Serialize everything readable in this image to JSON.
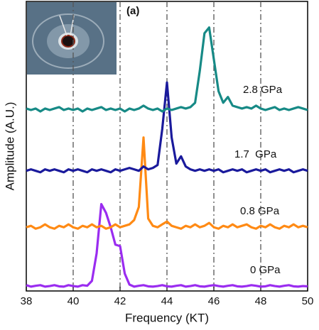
{
  "chart_data": {
    "type": "line",
    "panel_label": "(a)",
    "x_label": "Frequency (KT)",
    "y_label": "Amplitude (A.U.)",
    "xlim": [
      38,
      50
    ],
    "xticks": [
      38,
      40,
      42,
      44,
      46,
      48,
      50
    ],
    "ylim": [
      0,
      10
    ],
    "grid": true,
    "x": [
      38.0,
      38.2,
      38.4,
      38.6,
      38.8,
      39.0,
      39.2,
      39.4,
      39.6,
      39.8,
      40.0,
      40.2,
      40.4,
      40.6,
      40.8,
      41.0,
      41.2,
      41.4,
      41.6,
      41.8,
      42.0,
      42.2,
      42.4,
      42.6,
      42.8,
      43.0,
      43.2,
      43.4,
      43.6,
      43.8,
      44.0,
      44.2,
      44.4,
      44.6,
      44.8,
      45.0,
      45.2,
      45.4,
      45.6,
      45.8,
      46.0,
      46.2,
      46.4,
      46.6,
      46.8,
      47.0,
      47.2,
      47.4,
      47.6,
      47.8,
      48.0,
      48.2,
      48.4,
      48.6,
      48.8,
      49.0,
      49.2,
      49.4,
      49.6,
      49.8,
      50.0
    ],
    "series": [
      {
        "name": "0 GPa",
        "color": "#9a2cf0",
        "values": [
          0.2,
          0.15,
          0.18,
          0.2,
          0.15,
          0.17,
          0.2,
          0.16,
          0.15,
          0.2,
          0.17,
          0.15,
          0.2,
          0.18,
          0.35,
          1.3,
          3.0,
          2.7,
          2.2,
          1.6,
          1.55,
          0.6,
          0.22,
          0.15,
          0.18,
          0.2,
          0.16,
          0.15,
          0.17,
          0.2,
          0.16,
          0.15,
          0.18,
          0.2,
          0.15,
          0.17,
          0.2,
          0.16,
          0.15,
          0.18,
          0.2,
          0.17,
          0.15,
          0.18,
          0.2,
          0.16,
          0.15,
          0.17,
          0.2,
          0.18,
          0.15,
          0.16,
          0.2,
          0.17,
          0.15,
          0.18,
          0.2,
          0.16,
          0.15,
          0.17,
          0.16
        ]
      },
      {
        "name": "0.8 GPa",
        "color": "#ff8a14",
        "values": [
          2.2,
          2.25,
          2.15,
          2.2,
          2.3,
          2.2,
          2.15,
          2.25,
          2.2,
          2.3,
          2.2,
          2.15,
          2.25,
          2.2,
          2.3,
          2.2,
          2.25,
          2.15,
          2.2,
          2.3,
          2.2,
          2.25,
          2.3,
          2.45,
          2.9,
          5.3,
          2.5,
          2.25,
          2.2,
          2.3,
          2.4,
          2.25,
          2.2,
          2.15,
          2.25,
          2.2,
          2.3,
          2.2,
          2.25,
          2.35,
          2.2,
          2.15,
          2.25,
          2.2,
          2.3,
          2.2,
          2.25,
          2.3,
          2.2,
          2.15,
          2.25,
          2.2,
          2.3,
          2.2,
          2.15,
          2.25,
          2.2,
          2.3,
          2.2,
          2.25,
          2.2
        ]
      },
      {
        "name": "1.7  GPa",
        "color": "#1a1a9c",
        "values": [
          4.15,
          4.2,
          4.15,
          4.1,
          4.2,
          4.15,
          4.2,
          4.15,
          4.1,
          4.2,
          4.15,
          4.2,
          4.15,
          4.1,
          4.2,
          4.15,
          4.2,
          4.15,
          4.1,
          4.2,
          4.15,
          4.2,
          4.25,
          4.2,
          4.15,
          4.3,
          4.2,
          4.25,
          4.35,
          5.6,
          7.2,
          5.3,
          4.4,
          4.65,
          4.3,
          4.2,
          4.15,
          4.2,
          4.15,
          4.2,
          4.15,
          4.2,
          4.1,
          4.15,
          4.2,
          4.15,
          4.2,
          4.1,
          4.15,
          4.2,
          4.15,
          4.2,
          4.1,
          4.15,
          4.2,
          4.15,
          4.2,
          4.1,
          4.15,
          4.2,
          4.15
        ]
      },
      {
        "name": "2.8 GPa",
        "color": "#178a86",
        "values": [
          6.3,
          6.25,
          6.3,
          6.2,
          6.3,
          6.25,
          6.3,
          6.35,
          6.25,
          6.3,
          6.25,
          6.3,
          6.2,
          6.3,
          6.25,
          6.3,
          6.35,
          6.25,
          6.3,
          6.25,
          6.3,
          6.2,
          6.3,
          6.25,
          6.3,
          6.4,
          6.3,
          6.25,
          6.3,
          6.2,
          6.3,
          6.25,
          6.3,
          6.35,
          6.3,
          6.35,
          6.5,
          7.6,
          8.9,
          9.1,
          8.0,
          6.9,
          6.5,
          6.7,
          6.4,
          6.35,
          6.3,
          6.35,
          6.3,
          6.4,
          6.3,
          6.25,
          6.3,
          6.35,
          6.25,
          6.3,
          6.25,
          6.3,
          6.35,
          6.3,
          6.25
        ]
      }
    ]
  }
}
